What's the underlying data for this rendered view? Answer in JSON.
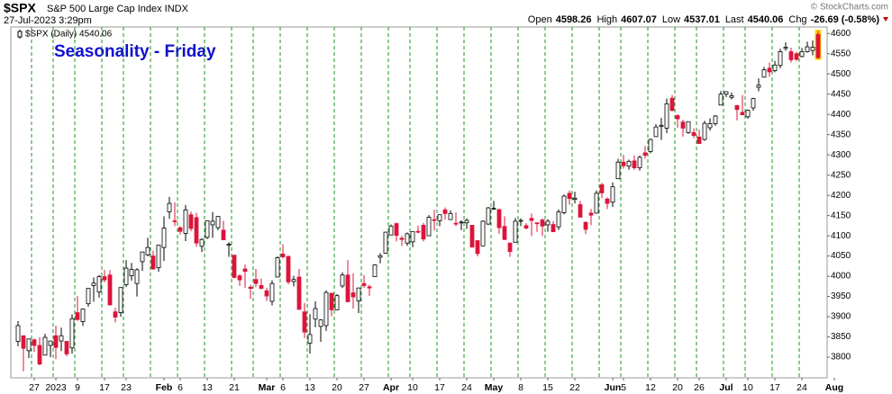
{
  "header": {
    "symbol": "$SPX",
    "name": "S&P 500 Large Cap Index INDX",
    "timestamp": "27-Jul-2023 3:29pm",
    "copyright": "© StockCharts.com",
    "quote": [
      {
        "label": "Open",
        "value": "4598.26"
      },
      {
        "label": "High",
        "value": "4607.07"
      },
      {
        "label": "Low",
        "value": "4537.01"
      },
      {
        "label": "Last",
        "value": "4540.06"
      },
      {
        "label": "Chg",
        "value": "-26.69 (-0.58%)"
      }
    ]
  },
  "chart_data": {
    "type": "candlestick",
    "title": "Seasonality - Friday",
    "legend": "$SPX (Daily) 4540.06",
    "categories": [
      null,
      null,
      null,
      "27",
      null,
      null,
      null,
      "2023",
      null,
      null,
      null,
      "9",
      null,
      null,
      null,
      null,
      "17",
      null,
      null,
      null,
      "23",
      null,
      null,
      null,
      null,
      null,
      null,
      "Feb",
      null,
      null,
      "6",
      null,
      null,
      null,
      null,
      "13",
      null,
      null,
      null,
      null,
      "21",
      null,
      null,
      null,
      null,
      null,
      "Mar",
      null,
      null,
      "6",
      null,
      null,
      null,
      null,
      "13",
      null,
      null,
      null,
      null,
      "20",
      null,
      null,
      null,
      null,
      "27",
      null,
      null,
      null,
      null,
      "Apr",
      null,
      null,
      null,
      "10",
      null,
      null,
      null,
      null,
      "17",
      null,
      null,
      null,
      null,
      "24",
      null,
      null,
      null,
      null,
      "May",
      null,
      null,
      null,
      null,
      "8",
      null,
      null,
      null,
      null,
      "15",
      null,
      null,
      null,
      null,
      "22",
      null,
      null,
      null,
      null,
      null,
      null,
      "Jun",
      null,
      "5",
      null,
      null,
      null,
      null,
      "12",
      null,
      null,
      null,
      null,
      "20",
      null,
      null,
      null,
      "26",
      null,
      null,
      null,
      null,
      "Jul",
      null,
      null,
      null,
      "10",
      null,
      null,
      null,
      null,
      "17",
      null,
      null,
      null,
      null,
      "24",
      null,
      null,
      null,
      null,
      null,
      "Aug"
    ],
    "open": [
      3839,
      3853,
      3816,
      3843,
      3829,
      3805,
      3829,
      3853,
      3840,
      3839,
      3823,
      3910,
      3888,
      3932,
      3977,
      3961,
      3999,
      4003,
      3912,
      3910,
      3979,
      4001,
      3982,
      4036,
      4053,
      4050,
      4021,
      4071,
      4159,
      4137,
      4120,
      4106,
      4152,
      4145,
      4074,
      4096,
      4127,
      4120,
      4114,
      4077,
      4052,
      4001,
      4018,
      3973,
      3992,
      3977,
      3964,
      3938,
      3998,
      4055,
      4049,
      3987,
      3998,
      3912,
      3835,
      3894,
      3876,
      3878,
      3958,
      3917,
      3976,
      4003,
      3959,
      3939,
      3982,
      3974,
      3999,
      4047,
      4057,
      4102,
      4130,
      4094,
      4082,
      4085,
      4111,
      4126,
      4100,
      4140,
      4137,
      4164,
      4140,
      4131,
      4132,
      4132,
      4126,
      4088,
      4075,
      4129,
      4166,
      4165,
      4123,
      4082,
      4084,
      4137,
      4125,
      4143,
      4132,
      4139,
      4127,
      4128,
      4122,
      4157,
      4205,
      4190,
      4177,
      4133,
      4156,
      4156,
      4226,
      4191,
      4183,
      4241,
      4282,
      4272,
      4285,
      4268,
      4305,
      4308,
      4345,
      4373,
      4366,
      4440,
      4397,
      4381,
      4355,
      4355,
      4344,
      4338,
      4367,
      4377,
      4423,
      4450,
      4442,
      4422,
      4405,
      4394,
      4416,
      4467,
      4492,
      4514,
      4508,
      4521,
      4563,
      4555,
      4550,
      4543,
      4555,
      4558,
      4598,
      null,
      null,
      null
    ],
    "high": [
      3889,
      3853,
      3846,
      3846,
      3849,
      3858,
      3840,
      3878,
      3873,
      3840,
      3906,
      3951,
      3920,
      3970,
      3997,
      4003,
      4016,
      4015,
      3922,
      3973,
      4040,
      4033,
      4020,
      4060,
      4095,
      4063,
      4077,
      4148,
      4196,
      4183,
      4124,
      4176,
      4160,
      4157,
      4094,
      4138,
      4159,
      4148,
      4137,
      4084,
      4052,
      4005,
      4029,
      3979,
      4018,
      3994,
      3971,
      3990,
      4049,
      4079,
      4051,
      4001,
      4018,
      3934,
      3906,
      3938,
      3894,
      3965,
      3959,
      3956,
      4010,
      4040,
      4007,
      3972,
      4003,
      3979,
      4030,
      4057,
      4110,
      4128,
      4133,
      4100,
      4108,
      4110,
      4125,
      4132,
      4151,
      4164,
      4152,
      4170,
      4163,
      4158,
      4138,
      4143,
      4126,
      4089,
      4138,
      4171,
      4186,
      4165,
      4148,
      4083,
      4144,
      4143,
      4131,
      4155,
      4133,
      4143,
      4141,
      4136,
      4165,
      4202,
      4212,
      4209,
      4186,
      4136,
      4166,
      4212,
      4231,
      4195,
      4232,
      4290,
      4300,
      4288,
      4299,
      4298,
      4322,
      4340,
      4376,
      4391,
      4439,
      4448,
      4400,
      4387,
      4382,
      4366,
      4362,
      4384,
      4390,
      4398,
      4458,
      4457,
      4454,
      4423,
      4448,
      4412,
      4441,
      4489,
      4517,
      4528,
      4532,
      4562,
      4578,
      4565,
      4555,
      4564,
      4580,
      4583,
      4607,
      null,
      null,
      null
    ],
    "low": [
      3827,
      3765,
      3798,
      3813,
      3780,
      3805,
      3800,
      3795,
      3815,
      3802,
      3809,
      3890,
      3877,
      3925,
      3937,
      3947,
      3985,
      3928,
      3886,
      3900,
      3973,
      3989,
      3950,
      4013,
      4049,
      4016,
      4011,
      4038,
      4142,
      4124,
      4103,
      4087,
      4111,
      4073,
      4060,
      4092,
      4095,
      4114,
      4090,
      4048,
      3995,
      3976,
      3971,
      3944,
      3973,
      3968,
      3939,
      3928,
      3998,
      4044,
      3980,
      3975,
      3918,
      3847,
      3809,
      3874,
      3838,
      3865,
      3901,
      3916,
      3971,
      3937,
      3920,
      3909,
      3971,
      3951,
      3999,
      4032,
      4056,
      4102,
      4086,
      4075,
      4075,
      4072,
      4106,
      4086,
      4099,
      4113,
      4124,
      4140,
      4140,
      4124,
      4114,
      4117,
      4071,
      4049,
      4075,
      4127,
      4164,
      4105,
      4089,
      4048,
      4084,
      4124,
      4116,
      4099,
      4110,
      4099,
      4110,
      4110,
      4114,
      4153,
      4177,
      4180,
      4146,
      4104,
      4126,
      4156,
      4193,
      4166,
      4171,
      4241,
      4266,
      4263,
      4263,
      4261,
      4291,
      4304,
      4345,
      4337,
      4354,
      4407,
      4367,
      4345,
      4352,
      4341,
      4328,
      4335,
      4360,
      4372,
      4423,
      4443,
      4437,
      4385,
      4399,
      4389,
      4409,
      4457,
      4491,
      4493,
      4504,
      4514,
      4557,
      4528,
      4532,
      4541,
      4553,
      4546,
      4537,
      null,
      null,
      null
    ],
    "close": [
      3878,
      3822,
      3845,
      3829,
      3783,
      3849,
      3840,
      3824,
      3853,
      3808,
      3895,
      3893,
      3919,
      3970,
      3983,
      3999,
      3991,
      3929,
      3899,
      3972,
      4020,
      4017,
      4016,
      4060,
      4071,
      4018,
      4077,
      4119,
      4180,
      4136,
      4111,
      4164,
      4118,
      4082,
      4091,
      4137,
      4136,
      4148,
      4090,
      4079,
      3997,
      3991,
      4012,
      3970,
      3982,
      3970,
      3951,
      3982,
      4046,
      4048,
      3986,
      3992,
      3918,
      3862,
      3856,
      3920,
      3892,
      3960,
      3917,
      3952,
      4003,
      3937,
      3949,
      3971,
      3977,
      3971,
      4028,
      4051,
      4109,
      4124,
      4101,
      4091,
      4105,
      4110,
      4109,
      4092,
      4146,
      4138,
      4152,
      4155,
      4155,
      4130,
      4134,
      4138,
      4072,
      4056,
      4136,
      4169,
      4168,
      4120,
      4091,
      4061,
      4136,
      4138,
      4119,
      4138,
      4131,
      4124,
      4136,
      4110,
      4159,
      4198,
      4192,
      4193,
      4146,
      4116,
      4151,
      4205,
      4206,
      4180,
      4221,
      4282,
      4273,
      4284,
      4268,
      4294,
      4299,
      4338,
      4369,
      4373,
      4426,
      4410,
      4389,
      4366,
      4382,
      4348,
      4328,
      4378,
      4377,
      4396,
      4450,
      4456,
      4446,
      4412,
      4399,
      4410,
      4439,
      4472,
      4510,
      4505,
      4522,
      4555,
      4566,
      4535,
      4536,
      4555,
      4567,
      4566,
      4540,
      null,
      null,
      null
    ],
    "up_color": "#000000",
    "down_color": "#dc143c",
    "last_highlight": "#ffd700",
    "week_start_lines": {
      "color": "#d62728",
      "at": [
        3,
        7,
        11,
        16,
        20,
        25,
        30,
        35,
        40,
        44,
        49,
        54,
        59,
        64,
        69,
        73,
        78,
        83,
        88,
        93,
        98,
        103,
        108,
        112,
        117,
        122,
        126,
        131,
        135,
        140,
        145
      ]
    },
    "week_end_lines": {
      "color": "#1a9a1a",
      "at": [
        2,
        6,
        10,
        15,
        19,
        24,
        29,
        34,
        39,
        43,
        48,
        53,
        58,
        63,
        68,
        72,
        77,
        82,
        87,
        92,
        97,
        102,
        107,
        111,
        116,
        121,
        125,
        130,
        134,
        139,
        144
      ]
    },
    "ylim": [
      3749,
      4616
    ],
    "yticks": [
      3800,
      3850,
      3900,
      3950,
      4000,
      4050,
      4100,
      4150,
      4200,
      4250,
      4300,
      4350,
      4400,
      4450,
      4500,
      4550,
      4600
    ]
  }
}
